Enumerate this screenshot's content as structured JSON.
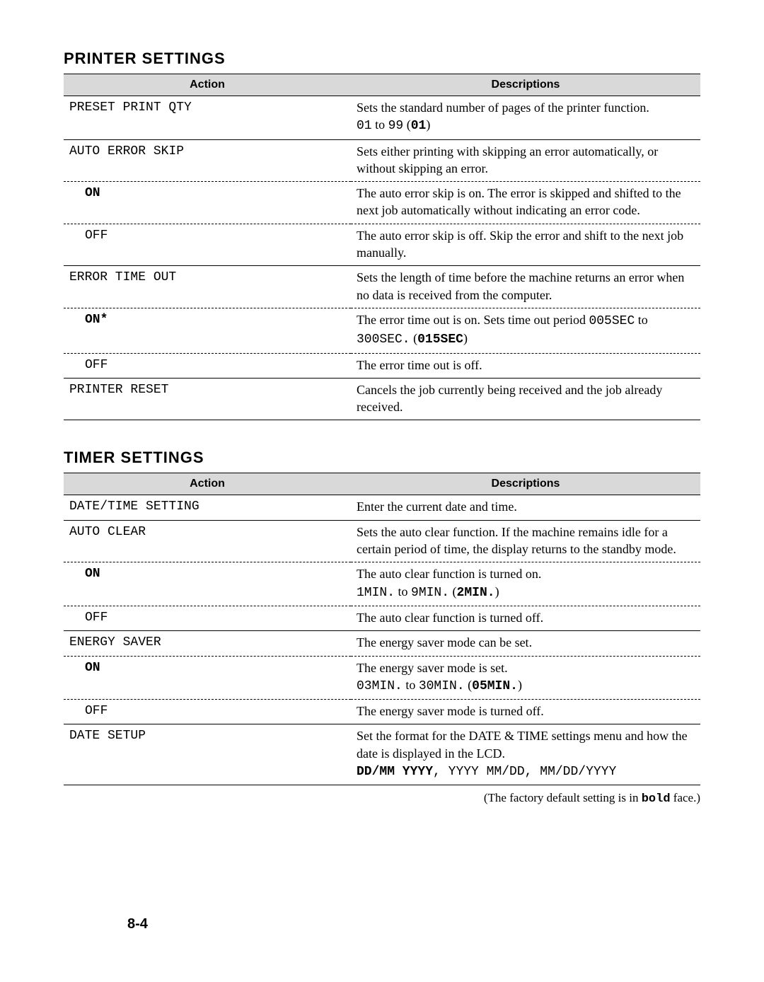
{
  "printer_settings": {
    "title": "Printer Settings",
    "header_action": "Action",
    "header_desc": "Descriptions",
    "rows": [
      {
        "action": "PRESET PRINT QTY",
        "indent": false,
        "top": "solid",
        "desc": [
          {
            "t": "Sets the standard number of pages of the printer function."
          },
          {
            "br": true
          },
          {
            "t": "01",
            "mono": true
          },
          {
            "t": " to "
          },
          {
            "t": "99",
            "mono": true
          },
          {
            "t": " ("
          },
          {
            "t": "01",
            "mono": true,
            "bold": true
          },
          {
            "t": ")"
          }
        ]
      },
      {
        "action": "AUTO ERROR SKIP",
        "indent": false,
        "top": "solid",
        "desc": [
          {
            "t": "Sets either printing with skipping an error automatically, or without skipping an error."
          }
        ]
      },
      {
        "action": "ON",
        "indent": true,
        "bold": true,
        "top": "dashed",
        "desc": [
          {
            "t": "The auto error skip is on. The error is skipped and shifted to the next job automatically without indicating an error code."
          }
        ]
      },
      {
        "action": "OFF",
        "indent": true,
        "top": "dashed",
        "desc": [
          {
            "t": "The auto error skip is off. Skip the error and shift to the next job manually."
          }
        ]
      },
      {
        "action": "ERROR TIME OUT",
        "indent": false,
        "top": "solid",
        "desc": [
          {
            "t": "Sets the length of time before the machine returns an error when no data is received from the computer."
          }
        ]
      },
      {
        "action": "ON*",
        "indent": true,
        "bold": true,
        "top": "dashed",
        "desc": [
          {
            "t": "The error time out is on. Sets time out period "
          },
          {
            "t": "005SEC",
            "mono": true
          },
          {
            "t": " to "
          },
          {
            "t": "300SEC.",
            "mono": true
          },
          {
            "t": " ("
          },
          {
            "t": "015SEC",
            "mono": true,
            "bold": true
          },
          {
            "t": ")"
          }
        ]
      },
      {
        "action": "OFF",
        "indent": true,
        "top": "dashed",
        "desc": [
          {
            "t": "The error time out is off."
          }
        ]
      },
      {
        "action": "PRINTER RESET",
        "indent": false,
        "top": "solid",
        "bottom": "solid",
        "desc": [
          {
            "t": "Cancels the job currently being received and the job already received."
          }
        ]
      }
    ]
  },
  "timer_settings": {
    "title": "Timer Settings",
    "header_action": "Action",
    "header_desc": "Descriptions",
    "rows": [
      {
        "action": "DATE/TIME SETTING",
        "indent": false,
        "top": "solid",
        "desc": [
          {
            "t": "Enter the current date and time."
          }
        ]
      },
      {
        "action": "AUTO CLEAR",
        "indent": false,
        "top": "solid",
        "desc": [
          {
            "t": "Sets the auto clear function. If the machine remains idle for a certain period of time, the display returns to the standby mode."
          }
        ]
      },
      {
        "action": "ON",
        "indent": true,
        "bold": true,
        "top": "dashed",
        "desc": [
          {
            "t": "The auto clear function is turned on."
          },
          {
            "br": true
          },
          {
            "t": "1MIN.",
            "mono": true
          },
          {
            "t": " to "
          },
          {
            "t": "9MIN.",
            "mono": true
          },
          {
            "t": " ("
          },
          {
            "t": "2MIN.",
            "mono": true,
            "bold": true
          },
          {
            "t": ")"
          }
        ]
      },
      {
        "action": "OFF",
        "indent": true,
        "top": "dashed",
        "desc": [
          {
            "t": "The auto clear function is turned off."
          }
        ]
      },
      {
        "action": "ENERGY SAVER",
        "indent": false,
        "top": "solid",
        "desc": [
          {
            "t": "The energy saver mode can be set."
          }
        ]
      },
      {
        "action": "ON",
        "indent": true,
        "bold": true,
        "top": "dashed",
        "desc": [
          {
            "t": "The energy saver mode is set."
          },
          {
            "br": true
          },
          {
            "t": "03MIN.",
            "mono": true
          },
          {
            "t": " to "
          },
          {
            "t": "30MIN.",
            "mono": true
          },
          {
            "t": " ("
          },
          {
            "t": "05MIN.",
            "mono": true,
            "bold": true
          },
          {
            "t": ")"
          }
        ]
      },
      {
        "action": "OFF",
        "indent": true,
        "top": "dashed",
        "desc": [
          {
            "t": "The energy saver mode is turned off."
          }
        ]
      },
      {
        "action": "DATE SETUP",
        "indent": false,
        "top": "solid",
        "bottom": "solid",
        "desc": [
          {
            "t": "Set the format for the DATE & TIME settings menu and how the date is displayed in the LCD."
          },
          {
            "br": true
          },
          {
            "t": "DD/MM YYYY",
            "mono": true,
            "bold": true
          },
          {
            "t": ", ",
            "mono": true
          },
          {
            "t": "YYYY MM/DD",
            "mono": true
          },
          {
            "t": ", ",
            "mono": true
          },
          {
            "t": "MM/DD/YYYY",
            "mono": true
          }
        ]
      }
    ]
  },
  "footnote_parts": [
    {
      "t": "(The factory default setting is in "
    },
    {
      "t": "bold",
      "mono": true,
      "bold": true
    },
    {
      "t": " face.)"
    }
  ],
  "page_number": "8-4"
}
